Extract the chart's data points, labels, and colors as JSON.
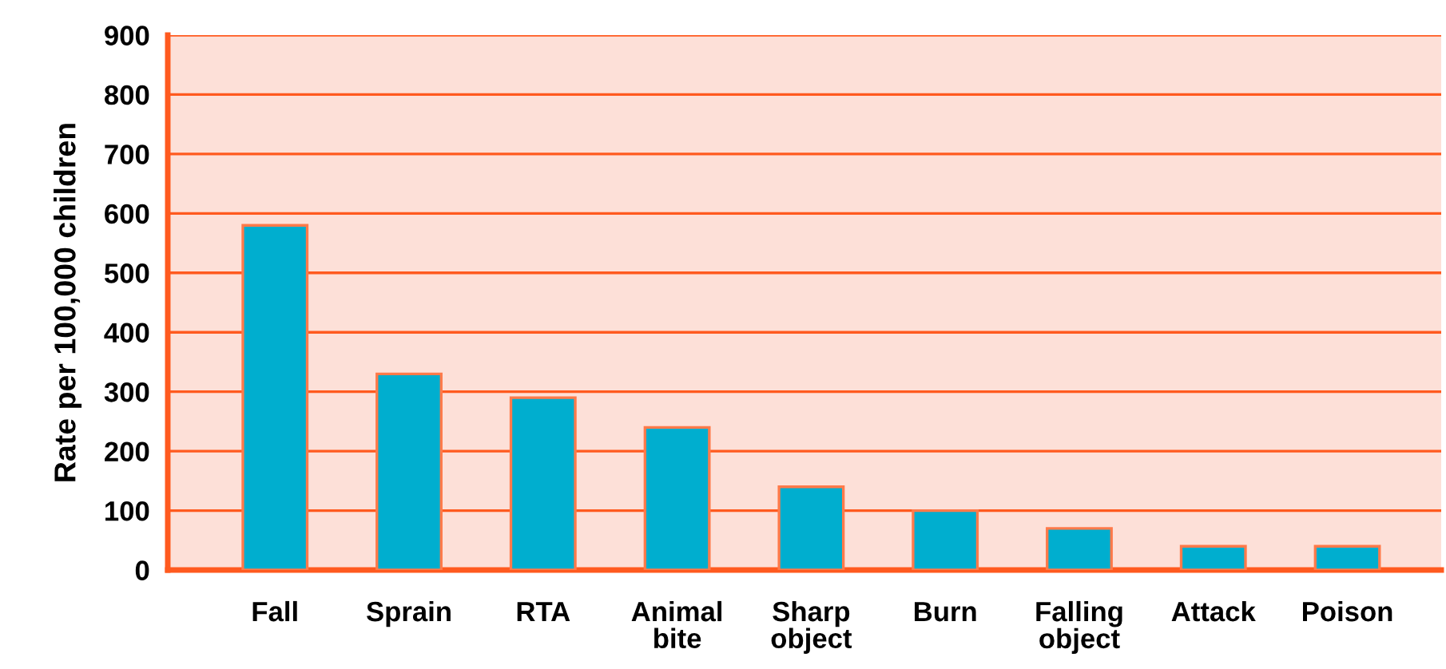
{
  "chart_data": {
    "type": "bar",
    "ylabel": "Rate per 100,000 children",
    "categories": [
      "Fall",
      "Sprain",
      "RTA",
      "Animal\nbite",
      "Sharp\nobject",
      "Burn",
      "Falling\nobject",
      "Attack",
      "Poison"
    ],
    "values": [
      580,
      330,
      290,
      240,
      140,
      100,
      70,
      40,
      40
    ],
    "color": "#00aecf",
    "ylim": [
      0,
      900
    ],
    "yticks": [
      0,
      100,
      200,
      300,
      400,
      500,
      600,
      700,
      800,
      900
    ],
    "grid": "y"
  }
}
